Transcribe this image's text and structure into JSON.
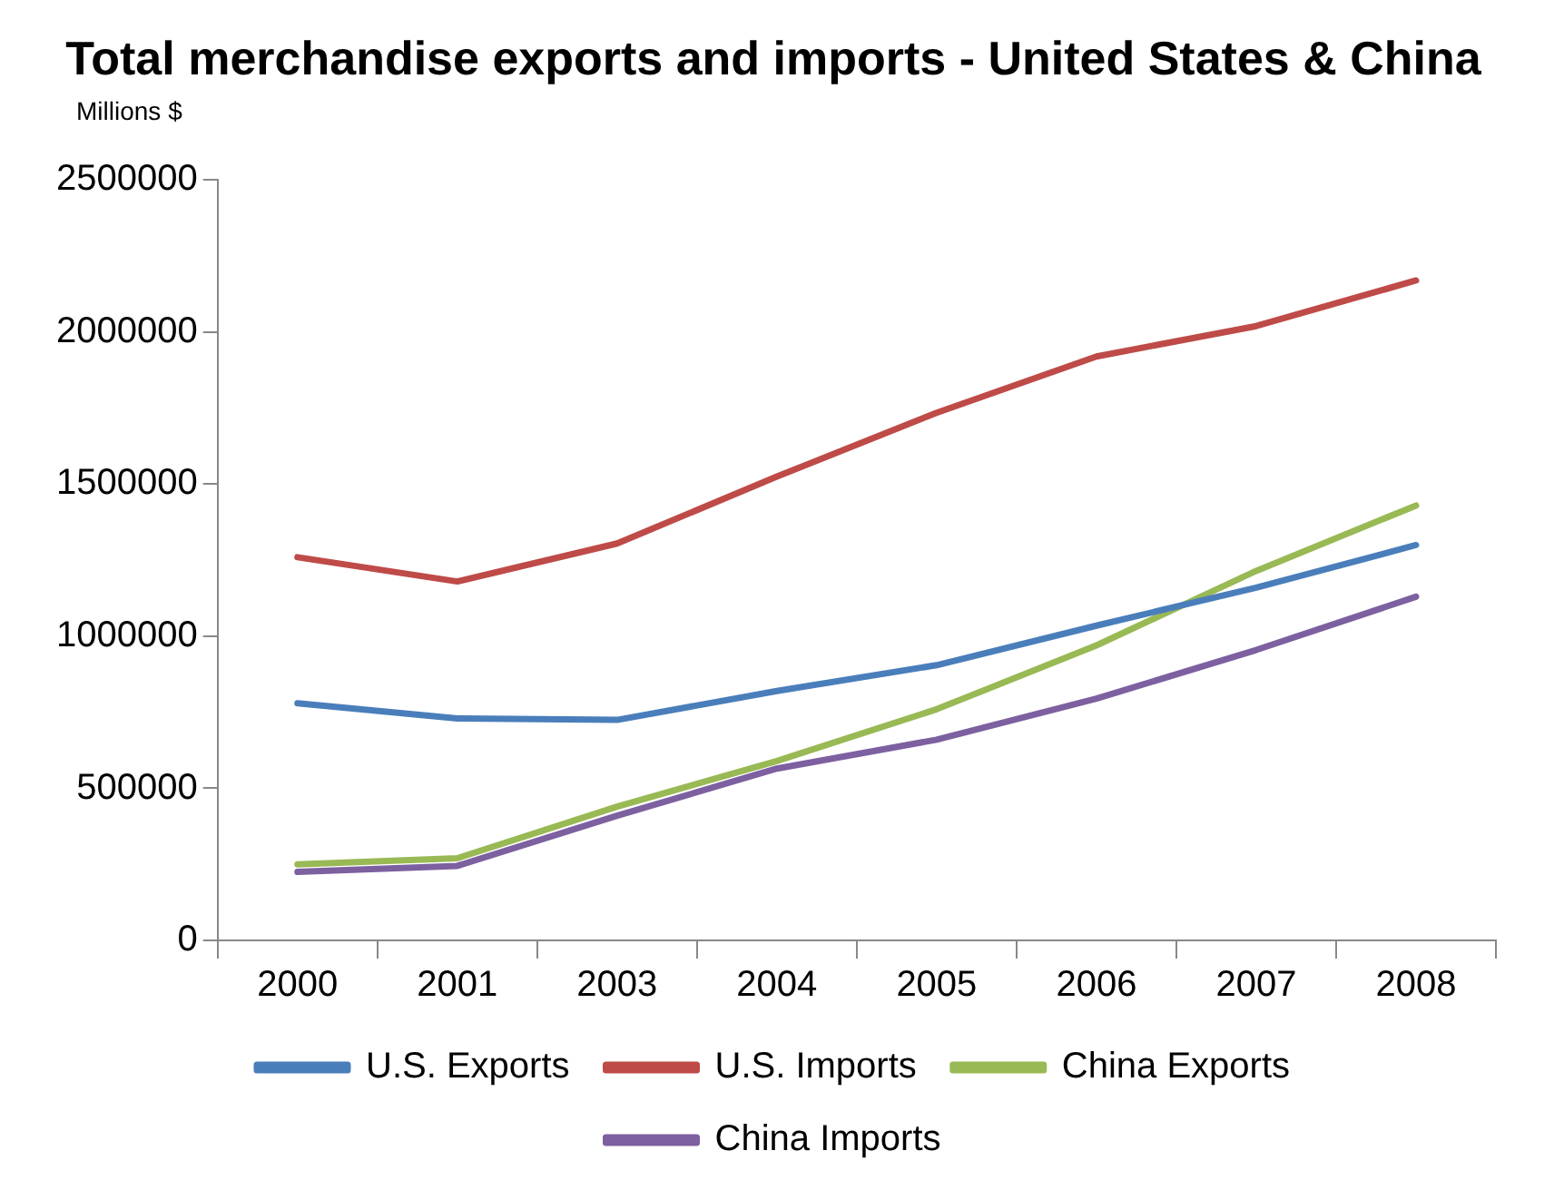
{
  "chart_data": {
    "type": "line",
    "title": "Total merchandise exports and imports - United States & China",
    "ylabel": "Millions $",
    "categories": [
      "2000",
      "2001",
      "2003",
      "2004",
      "2005",
      "2006",
      "2007",
      "2008"
    ],
    "series": [
      {
        "name": "U.S. Exports",
        "color": "#4a7ebb",
        "values": [
          780000,
          730000,
          725000,
          820000,
          905000,
          1035000,
          1160000,
          1300000
        ]
      },
      {
        "name": "U.S. Imports",
        "color": "#be4b48",
        "values": [
          1260000,
          1180000,
          1305000,
          1525000,
          1735000,
          1920000,
          2020000,
          2170000
        ]
      },
      {
        "name": "China Exports",
        "color": "#98b954",
        "values": [
          250000,
          270000,
          440000,
          590000,
          760000,
          970000,
          1215000,
          1430000
        ]
      },
      {
        "name": "China Imports",
        "color": "#7d60a0",
        "values": [
          225000,
          245000,
          410000,
          565000,
          660000,
          795000,
          955000,
          1130000
        ]
      }
    ],
    "ylim": [
      0,
      2500000
    ],
    "yticks": [
      0,
      500000,
      1000000,
      1500000,
      2000000,
      2500000
    ],
    "grid": false,
    "legend": "bottom",
    "marker": "none",
    "line_style": "solid"
  }
}
